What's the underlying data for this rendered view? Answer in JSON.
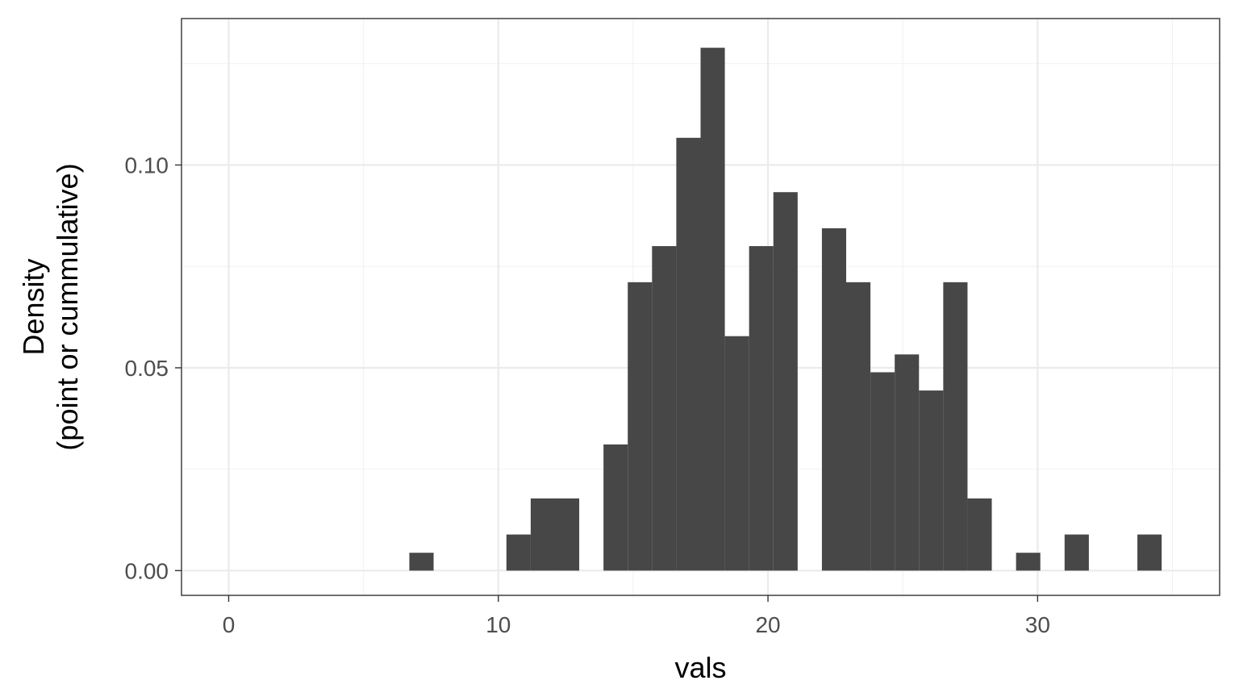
{
  "chart_data": {
    "type": "bar",
    "subtype": "histogram",
    "xlabel": "vals",
    "ylabel_lines": [
      "Density",
      "(point or cummulative)"
    ],
    "xlim": [
      -1.75,
      36.75
    ],
    "ylim": [
      -0.0061,
      0.1361
    ],
    "x_ticks": [
      0,
      10,
      20,
      30
    ],
    "x_tick_labels": [
      "0",
      "10",
      "20",
      "30"
    ],
    "y_ticks": [
      0.0,
      0.05,
      0.1
    ],
    "y_tick_labels": [
      "0.00",
      "0.05",
      "0.10"
    ],
    "x_minor_ticks": [
      5,
      15,
      25,
      35
    ],
    "y_minor_ticks": [
      0.025,
      0.075,
      0.125
    ],
    "grid": true,
    "bar_color": "#474747",
    "bins": [
      {
        "start": 6.7,
        "end": 7.6,
        "value": 0.0044
      },
      {
        "start": 10.3,
        "end": 11.2,
        "value": 0.0089
      },
      {
        "start": 11.2,
        "end": 12.1,
        "value": 0.0178
      },
      {
        "start": 12.1,
        "end": 13.0,
        "value": 0.0178
      },
      {
        "start": 13.9,
        "end": 14.8,
        "value": 0.0311
      },
      {
        "start": 14.8,
        "end": 15.7,
        "value": 0.0711
      },
      {
        "start": 15.7,
        "end": 16.6,
        "value": 0.08
      },
      {
        "start": 16.6,
        "end": 17.5,
        "value": 0.1067
      },
      {
        "start": 17.5,
        "end": 18.4,
        "value": 0.1289
      },
      {
        "start": 18.4,
        "end": 19.3,
        "value": 0.0578
      },
      {
        "start": 19.3,
        "end": 20.2,
        "value": 0.08
      },
      {
        "start": 20.2,
        "end": 21.1,
        "value": 0.0933
      },
      {
        "start": 22.0,
        "end": 22.9,
        "value": 0.0844
      },
      {
        "start": 22.9,
        "end": 23.8,
        "value": 0.0711
      },
      {
        "start": 23.8,
        "end": 24.7,
        "value": 0.0489
      },
      {
        "start": 24.7,
        "end": 25.6,
        "value": 0.0533
      },
      {
        "start": 25.6,
        "end": 26.5,
        "value": 0.0444
      },
      {
        "start": 26.5,
        "end": 27.4,
        "value": 0.0711
      },
      {
        "start": 27.4,
        "end": 28.3,
        "value": 0.0178
      },
      {
        "start": 29.2,
        "end": 30.1,
        "value": 0.0044
      },
      {
        "start": 31.0,
        "end": 31.9,
        "value": 0.0089
      },
      {
        "start": 33.7,
        "end": 34.6,
        "value": 0.0089
      }
    ]
  }
}
